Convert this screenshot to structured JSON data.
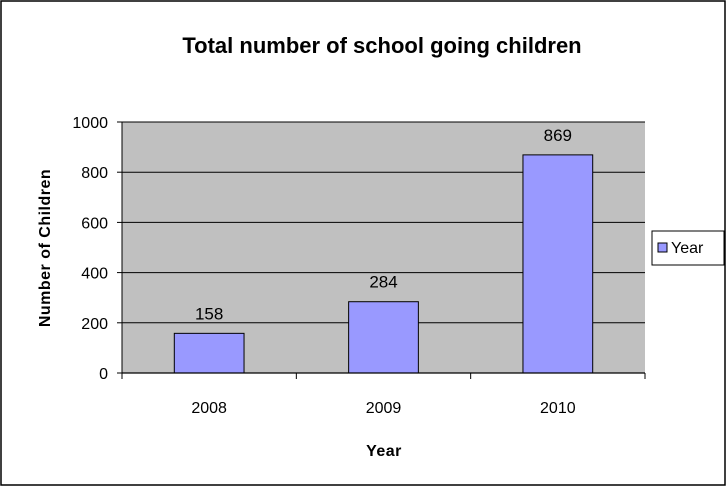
{
  "chart_data": {
    "type": "bar",
    "title": "Total number of school going children",
    "xlabel": "Year",
    "ylabel": "Number of Children",
    "categories": [
      "2008",
      "2009",
      "2010"
    ],
    "series": [
      {
        "name": "Year",
        "values": [
          158,
          284,
          869
        ]
      }
    ],
    "ylim": [
      0,
      1000
    ],
    "yticks": [
      0,
      200,
      400,
      600,
      800,
      1000
    ],
    "grid": true,
    "legend": "right",
    "colors": {
      "bar_fill": "#9999ff",
      "plot_bg": "#c0c0c0",
      "page_bg": "#ffffff"
    }
  }
}
